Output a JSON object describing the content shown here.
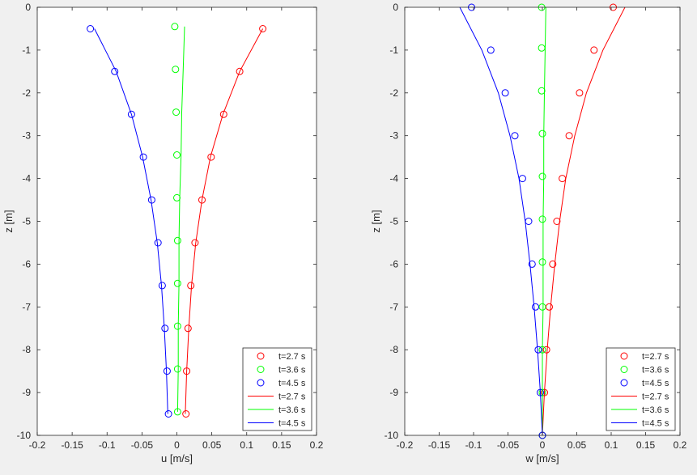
{
  "chart_data": [
    {
      "type": "line",
      "xlabel": "u [m/s]",
      "ylabel": "z [m]",
      "xlim": [
        -0.2,
        0.2
      ],
      "ylim": [
        -10,
        0
      ],
      "xticks": [
        "-0.2",
        "-0.15",
        "-0.1",
        "-0.05",
        "0",
        "0.05",
        "0.1",
        "0.15",
        "0.2"
      ],
      "yticks": [
        "0",
        "-1",
        "-2",
        "-3",
        "-4",
        "-5",
        "-6",
        "-7",
        "-8",
        "-9",
        "-10"
      ],
      "grid": false,
      "legend_position": "bottom-right",
      "legend": [
        "t=2.7 s",
        "t=3.6 s",
        "t=4.5 s",
        "t=2.7 s",
        "t=3.6 s",
        "t=4.5 s"
      ],
      "series": [
        {
          "name": "t=2.7 s",
          "style": "markers",
          "color": "#ff0000",
          "x": [
            0.123,
            0.09,
            0.067,
            0.049,
            0.036,
            0.026,
            0.02,
            0.016,
            0.014,
            0.013
          ],
          "y": [
            -0.5,
            -1.5,
            -2.5,
            -3.5,
            -4.5,
            -5.5,
            -6.5,
            -7.5,
            -8.5,
            -9.5
          ]
        },
        {
          "name": "t=3.6 s",
          "style": "markers",
          "color": "#00ff00",
          "x": [
            -0.003,
            -0.002,
            -0.001,
            0,
            0,
            0.001,
            0.001,
            0.001,
            0.001,
            0.001
          ],
          "y": [
            -0.45,
            -1.45,
            -2.45,
            -3.45,
            -4.45,
            -5.45,
            -6.45,
            -7.45,
            -8.45,
            -9.45
          ]
        },
        {
          "name": "t=4.5 s",
          "style": "markers",
          "color": "#0000ff",
          "x": [
            -0.124,
            -0.089,
            -0.065,
            -0.048,
            -0.036,
            -0.027,
            -0.021,
            -0.017,
            -0.014,
            -0.012
          ],
          "y": [
            -0.5,
            -1.5,
            -2.5,
            -3.5,
            -4.5,
            -5.5,
            -6.5,
            -7.5,
            -8.5,
            -9.5
          ]
        },
        {
          "name": "t=2.7 s",
          "style": "line",
          "color": "#ff0000",
          "x": [
            0.123,
            0.09,
            0.066,
            0.048,
            0.036,
            0.027,
            0.021,
            0.017,
            0.014,
            0.012
          ],
          "y": [
            -0.5,
            -1.5,
            -2.5,
            -3.5,
            -4.5,
            -5.5,
            -6.5,
            -7.5,
            -8.5,
            -9.5
          ]
        },
        {
          "name": "t=3.6 s",
          "style": "line",
          "color": "#00ff00",
          "x": [
            0.011,
            0.009,
            0.007,
            0.006,
            0.004,
            0.003,
            0.003,
            0.002,
            0.002,
            0.001
          ],
          "y": [
            -0.45,
            -1.45,
            -2.45,
            -3.45,
            -4.45,
            -5.45,
            -6.45,
            -7.45,
            -8.45,
            -9.45
          ]
        },
        {
          "name": "t=4.5 s",
          "style": "line",
          "color": "#0000ff",
          "x": [
            -0.118,
            -0.087,
            -0.065,
            -0.049,
            -0.037,
            -0.028,
            -0.022,
            -0.018,
            -0.015,
            -0.013
          ],
          "y": [
            -0.5,
            -1.5,
            -2.5,
            -3.5,
            -4.5,
            -5.5,
            -6.5,
            -7.5,
            -8.5,
            -9.5
          ]
        }
      ]
    },
    {
      "type": "line",
      "xlabel": "w [m/s]",
      "ylabel": "z [m]",
      "xlim": [
        -0.2,
        0.2
      ],
      "ylim": [
        -10,
        0
      ],
      "xticks": [
        "-0.2",
        "-0.15",
        "-0.1",
        "-0.05",
        "0",
        "0.05",
        "0.1",
        "0.15",
        "0.2"
      ],
      "yticks": [
        "0",
        "-1",
        "-2",
        "-3",
        "-4",
        "-5",
        "-6",
        "-7",
        "-8",
        "-9",
        "-10"
      ],
      "grid": false,
      "legend_position": "bottom-right",
      "legend": [
        "t=2.7 s",
        "t=3.6 s",
        "t=4.5 s",
        "t=2.7 s",
        "t=3.6 s",
        "t=4.5 s"
      ],
      "series": [
        {
          "name": "t=2.7 s",
          "style": "markers",
          "color": "#ff0000",
          "x": [
            0.103,
            0.075,
            0.054,
            0.039,
            0.029,
            0.021,
            0.015,
            0.01,
            0.006,
            0.003,
            0
          ],
          "y": [
            0,
            -1,
            -2,
            -3,
            -4,
            -5,
            -6,
            -7,
            -8,
            -9,
            -10
          ]
        },
        {
          "name": "t=3.6 s",
          "style": "markers",
          "color": "#00ff00",
          "x": [
            -0.001,
            -0.001,
            -0.001,
            0,
            0,
            0,
            0,
            0,
            0,
            0,
            0
          ],
          "y": [
            0,
            -0.95,
            -1.95,
            -2.95,
            -3.95,
            -4.95,
            -5.95,
            -7,
            -8,
            -9,
            -10
          ]
        },
        {
          "name": "t=4.5 s",
          "style": "markers",
          "color": "#0000ff",
          "x": [
            -0.103,
            -0.075,
            -0.054,
            -0.04,
            -0.029,
            -0.02,
            -0.015,
            -0.01,
            -0.006,
            -0.003,
            0
          ],
          "y": [
            0,
            -1,
            -2,
            -3,
            -4,
            -5,
            -6,
            -7,
            -8,
            -9,
            -10
          ]
        },
        {
          "name": "t=2.7 s",
          "style": "line",
          "color": "#ff0000",
          "x": [
            0.12,
            0.088,
            0.064,
            0.047,
            0.034,
            0.025,
            0.018,
            0.012,
            0.007,
            0.003,
            0
          ],
          "y": [
            0,
            -1,
            -2,
            -3,
            -4,
            -5,
            -6,
            -7,
            -8,
            -9,
            -10
          ]
        },
        {
          "name": "t=3.6 s",
          "style": "line",
          "color": "#00ff00",
          "x": [
            0.005,
            0.004,
            0.003,
            0.002,
            0.002,
            0.001,
            0.001,
            0.001,
            0,
            0,
            0
          ],
          "y": [
            0,
            -1,
            -2,
            -3,
            -4,
            -5,
            -6,
            -7,
            -8,
            -9,
            -10
          ]
        },
        {
          "name": "t=4.5 s",
          "style": "line",
          "color": "#0000ff",
          "x": [
            -0.12,
            -0.088,
            -0.064,
            -0.047,
            -0.034,
            -0.025,
            -0.018,
            -0.012,
            -0.007,
            -0.003,
            0
          ],
          "y": [
            0,
            -1,
            -2,
            -3,
            -4,
            -5,
            -6,
            -7,
            -8,
            -9,
            -10
          ]
        }
      ]
    }
  ]
}
